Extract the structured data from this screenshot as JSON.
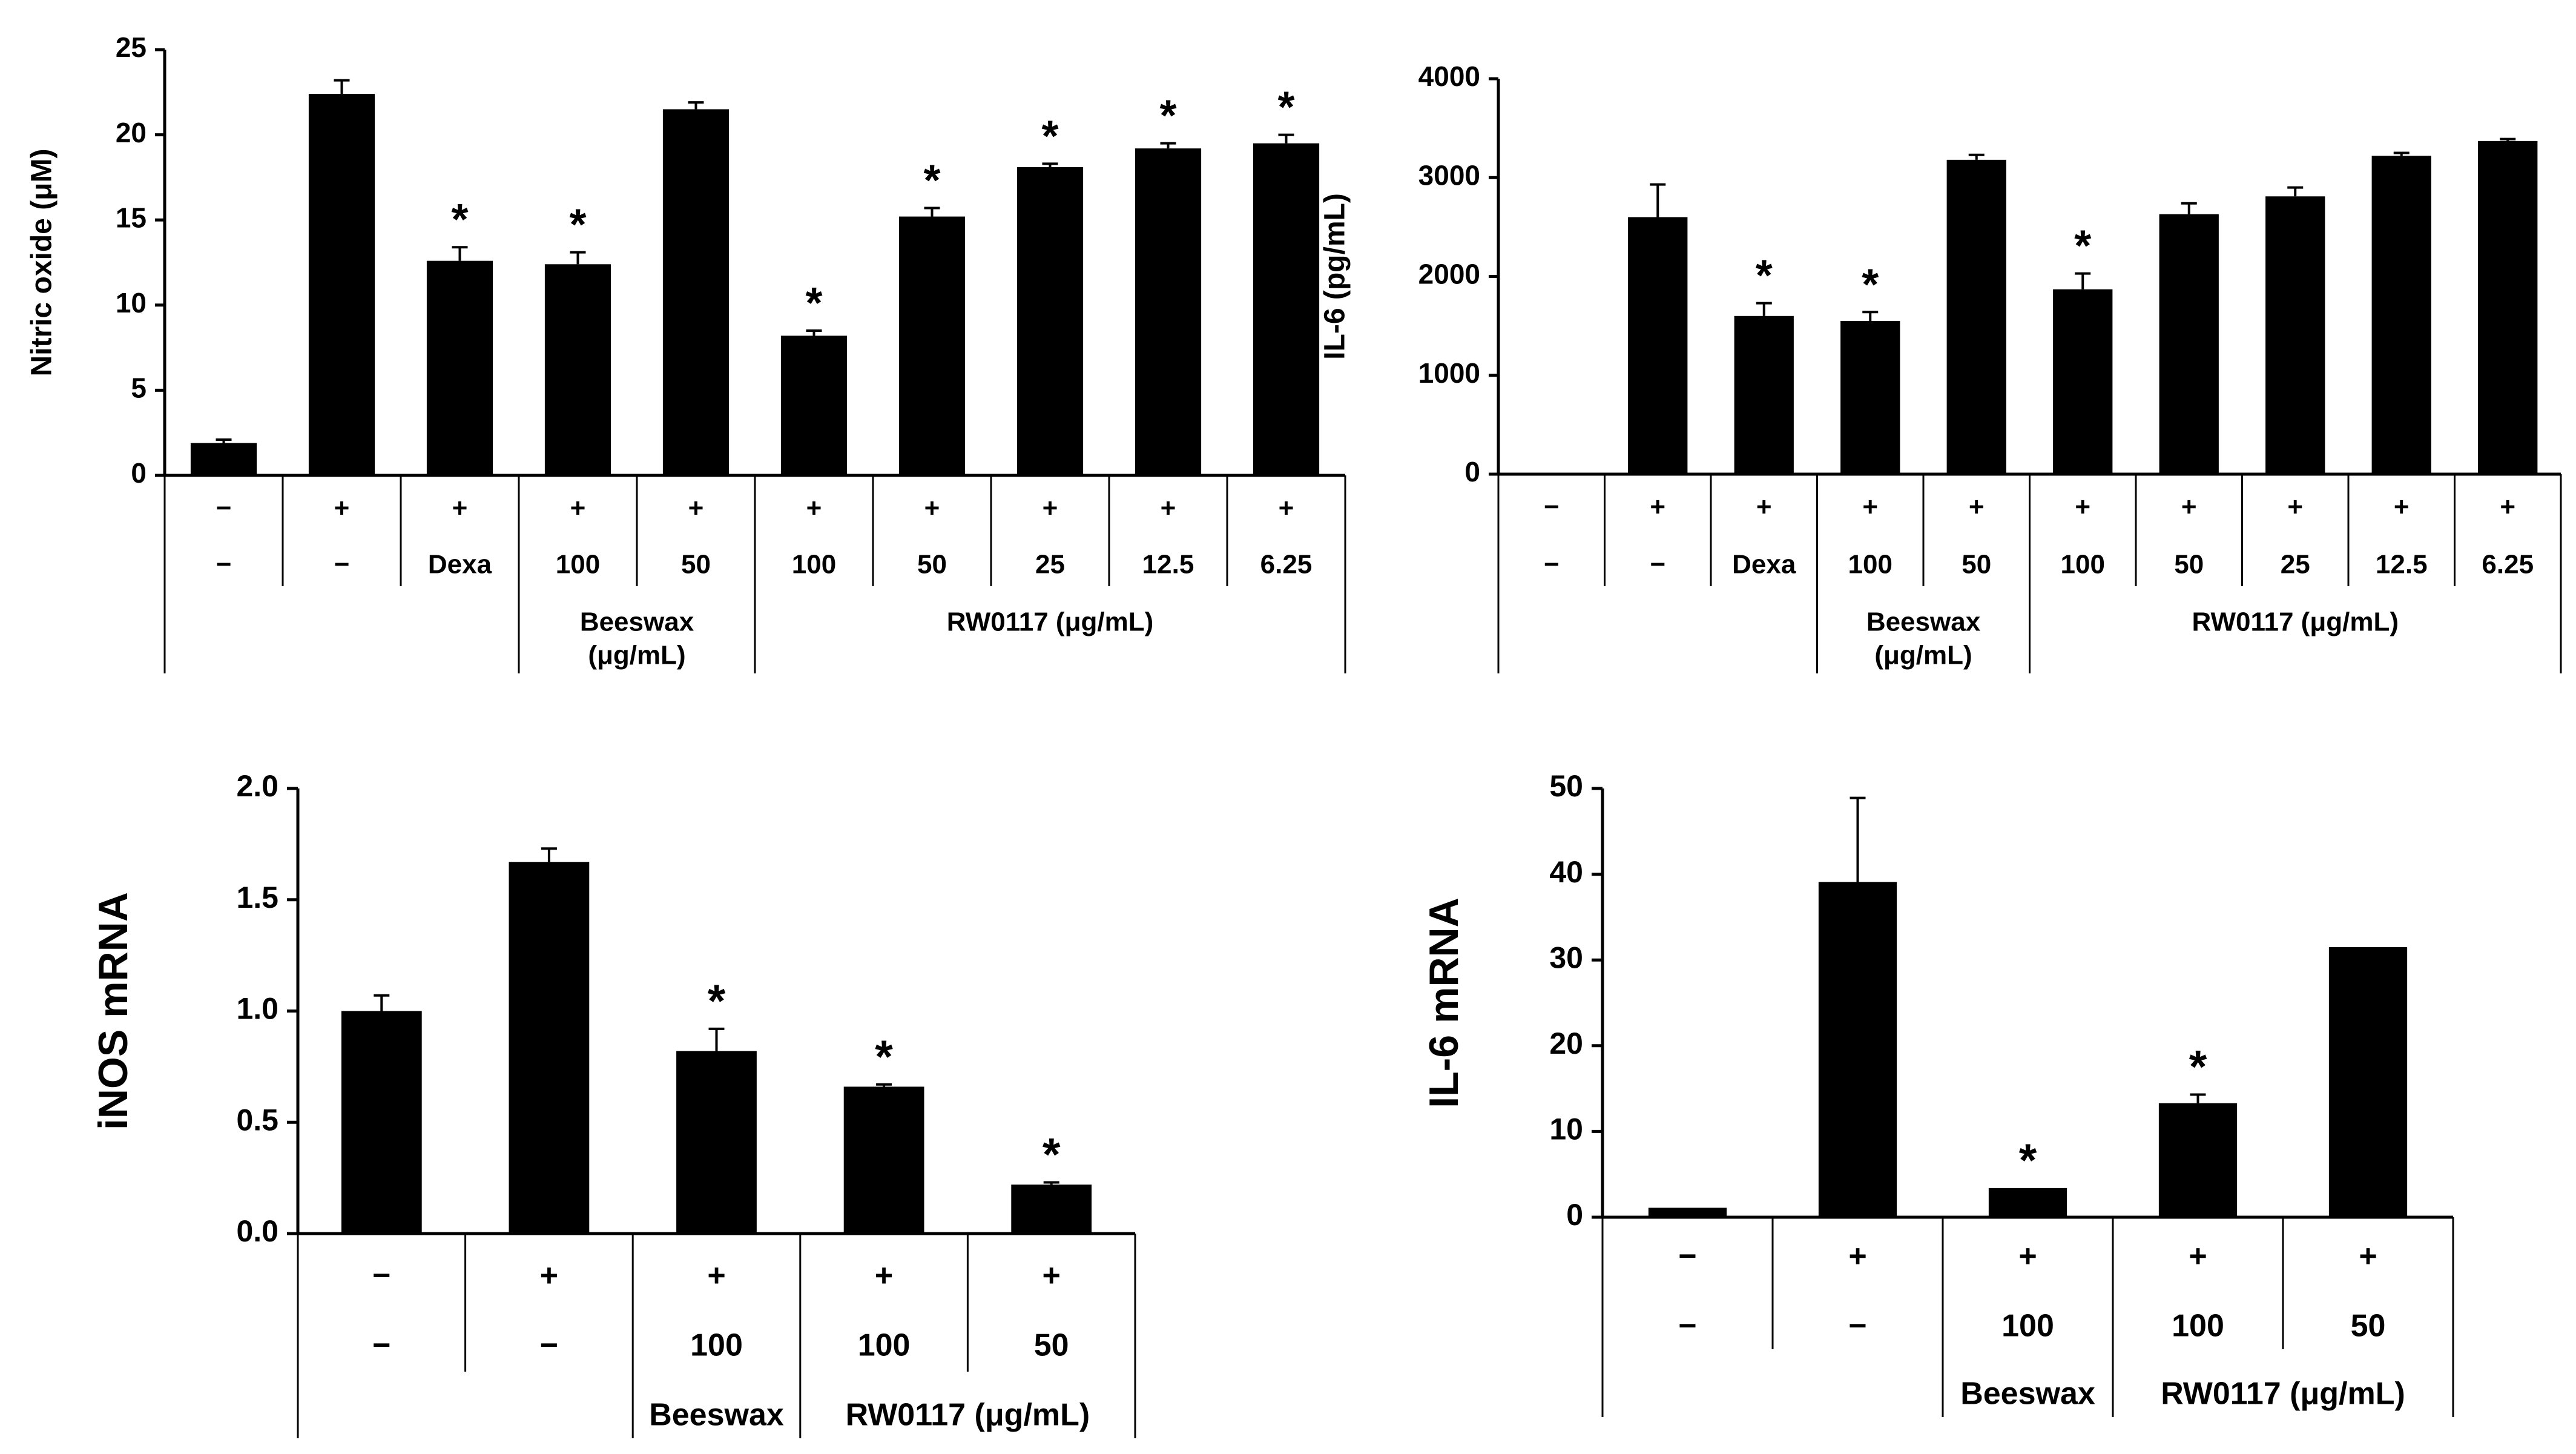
{
  "colors": {
    "bar": "#000000",
    "axis": "#000000",
    "background": "#ffffff"
  },
  "chart_data": [
    {
      "id": "no",
      "type": "bar",
      "title": "",
      "ylabel": "Nitric oxide (μM)",
      "xlabel": "",
      "ylim": [
        0,
        25
      ],
      "yticks": [
        "0",
        "5",
        "10",
        "15",
        "20",
        "25"
      ],
      "grid": false,
      "legend": "none",
      "values": [
        1.9,
        22.4,
        12.6,
        12.4,
        21.5,
        8.2,
        15.2,
        18.1,
        19.2,
        19.5
      ],
      "errors": [
        0.2,
        0.8,
        0.8,
        0.7,
        0.4,
        0.3,
        0.5,
        0.2,
        0.3,
        0.5
      ],
      "significant": [
        false,
        false,
        true,
        true,
        false,
        true,
        true,
        true,
        true,
        true
      ],
      "row1": [
        "−",
        "+",
        "+",
        "+",
        "+",
        "+",
        "+",
        "+",
        "+",
        "+"
      ],
      "row2": [
        "−",
        "−",
        "Dexa",
        "100",
        "50",
        "100",
        "50",
        "25",
        "12.5",
        "6.25"
      ],
      "groups": [
        {
          "label": "Beeswax",
          "label2": "(μg/mL)"
        },
        {
          "label": "RW0117 (μg/mL)",
          "label2": ""
        }
      ]
    },
    {
      "id": "il6",
      "type": "bar",
      "title": "",
      "ylabel": "IL-6 (pg/mL)",
      "xlabel": "",
      "ylim": [
        0,
        4000
      ],
      "yticks": [
        "0",
        "1000",
        "2000",
        "3000",
        "4000"
      ],
      "grid": false,
      "legend": "none",
      "values": [
        0,
        2600,
        1600,
        1550,
        3180,
        1870,
        2630,
        2810,
        3220,
        3370
      ],
      "errors": [
        0,
        330,
        130,
        90,
        50,
        160,
        110,
        90,
        30,
        20
      ],
      "significant": [
        false,
        false,
        true,
        true,
        false,
        true,
        false,
        false,
        false,
        false
      ],
      "row1": [
        "−",
        "+",
        "+",
        "+",
        "+",
        "+",
        "+",
        "+",
        "+",
        "+"
      ],
      "row2": [
        "−",
        "−",
        "Dexa",
        "100",
        "50",
        "100",
        "50",
        "25",
        "12.5",
        "6.25"
      ],
      "groups": [
        {
          "label": "Beeswax",
          "label2": "(μg/mL)"
        },
        {
          "label": "RW0117 (μg/mL)",
          "label2": ""
        }
      ]
    },
    {
      "id": "inos",
      "type": "bar",
      "title": "",
      "ylabel": "iNOS mRNA",
      "xlabel": "",
      "ylim": [
        0,
        2.0
      ],
      "yticks": [
        "0.0",
        "0.5",
        "1.0",
        "1.5",
        "2.0"
      ],
      "grid": false,
      "legend": "none",
      "values": [
        1.0,
        1.67,
        0.82,
        0.66,
        0.22
      ],
      "errors": [
        0.07,
        0.06,
        0.1,
        0.01,
        0.01
      ],
      "significant": [
        false,
        false,
        true,
        true,
        true
      ],
      "row1": [
        "−",
        "+",
        "+",
        "+",
        "+"
      ],
      "row2": [
        "−",
        "−",
        "100",
        "100",
        "50"
      ],
      "groups": [
        {
          "label": "Beeswax",
          "label2": ""
        },
        {
          "label": "RW0117 (μg/mL)",
          "label2": ""
        }
      ]
    },
    {
      "id": "il6mrna",
      "type": "bar",
      "title": "",
      "ylabel": "IL-6 mRNA",
      "xlabel": "",
      "ylim": [
        0,
        50
      ],
      "yticks": [
        "0",
        "10",
        "20",
        "30",
        "40",
        "50"
      ],
      "grid": false,
      "legend": "none",
      "values": [
        1.1,
        39.1,
        3.4,
        13.3,
        31.5
      ],
      "errors": [
        0,
        9.8,
        0,
        1.0,
        0
      ],
      "significant": [
        false,
        false,
        true,
        true,
        false
      ],
      "row1": [
        "−",
        "+",
        "+",
        "+",
        "+"
      ],
      "row2": [
        "−",
        "−",
        "100",
        "100",
        "50"
      ],
      "groups": [
        {
          "label": "Beeswax",
          "label2": ""
        },
        {
          "label": "RW0117 (μg/mL)",
          "label2": ""
        }
      ]
    }
  ]
}
